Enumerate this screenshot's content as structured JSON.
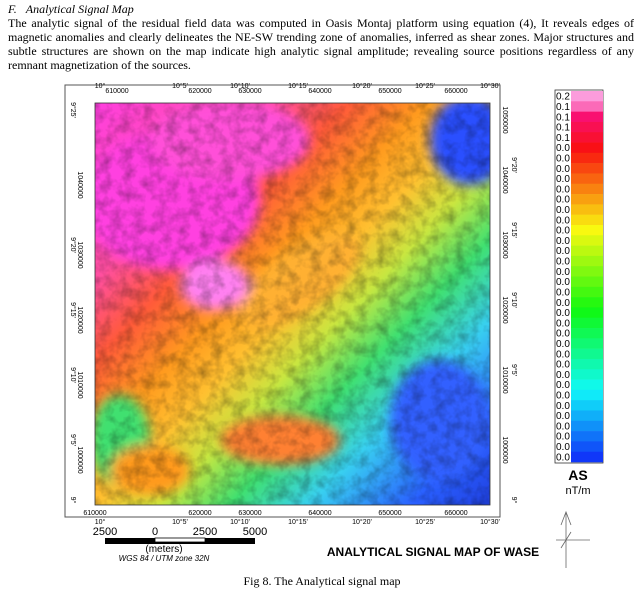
{
  "section": {
    "heading": "F.",
    "title": "Analytical Signal Map",
    "paragraph": "The analytic signal of the residual field data was computed in Oasis Montaj platform using equation (4), It reveals edges of magnetic anomalies and clearly delineates the NE-SW trending zone of anomalies, inferred as shear zones. Major structures and subtle structures are shown on the map indicate high analytic signal amplitude; revealing source positions regardless of any remnant magnetization of the sources."
  },
  "figure": {
    "top_ticks": [
      "10°",
      "610000",
      "10°5'",
      "620000",
      "10°10'",
      "630000",
      "10°15'",
      "640000",
      "10°20'",
      "650000",
      "10°25'",
      "660000",
      "10°30'"
    ],
    "bottom_ticks": [
      "610000",
      "10°",
      "620000",
      "10°5'",
      "630000",
      "10°10'",
      "640000",
      "10°15'",
      "10°20'",
      "650000",
      "10°25'",
      "660000",
      "10°30'"
    ],
    "left_ticks": [
      "9°25'",
      "1040000",
      "9°20'",
      "1030000",
      "9°15'",
      "1020000",
      "9°10'",
      "1010000",
      "9°5'",
      "1000000",
      "9°"
    ],
    "right_ticks": [
      "1050000",
      "9°20'",
      "1040000",
      "9°15'",
      "1030000",
      "9°10'",
      "1020000",
      "9°5'",
      "1010000",
      "1000000",
      "9°"
    ],
    "legend": {
      "labels": [
        "0.2",
        "0.1",
        "0.1",
        "0.1",
        "0.1",
        "0.0",
        "0.0",
        "0.0",
        "0.0",
        "0.0",
        "0.0",
        "0.0",
        "0.0",
        "0.0",
        "0.0",
        "0.0",
        "0.0",
        "0.0",
        "0.0",
        "0.0",
        "0.0",
        "0.0",
        "0.0",
        "0.0",
        "0.0",
        "0.0",
        "0.0",
        "0.0",
        "0.0",
        "0.0",
        "0.0",
        "0.0",
        "0.0",
        "0.0",
        "0.0",
        "0.0"
      ],
      "title": "AS",
      "unit": "nT/m"
    },
    "scale": {
      "ticks": [
        "2500",
        "0",
        "2500",
        "5000"
      ],
      "unit": "(meters)",
      "projection": "WGS 84 / UTM zone 32N"
    },
    "map_title": "ANALYTICAL SIGNAL MAP OF WASE",
    "caption": "Fig 8. The Analytical signal map"
  }
}
